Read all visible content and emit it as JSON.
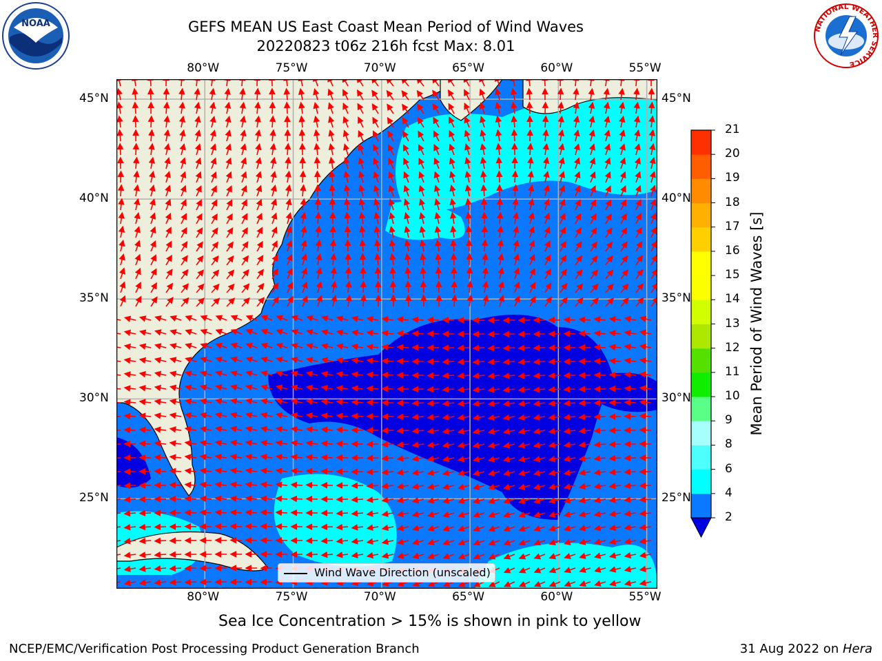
{
  "title": {
    "line1": "GEFS MEAN US East Coast Mean Period of Wind Waves",
    "line2": "20220823 t06z 216h fcst   Max: 8.01"
  },
  "map": {
    "lon_range": [
      -85,
      -54.4
    ],
    "lat_range": [
      20.5,
      46
    ],
    "lon_ticks": [
      "80°W",
      "75°W",
      "70°W",
      "65°W",
      "60°W",
      "55°W"
    ],
    "lon_tick_values": [
      -80,
      -75,
      -70,
      -65,
      -60,
      -55
    ],
    "lat_ticks": [
      "45°N",
      "40°N",
      "35°N",
      "30°N",
      "25°N"
    ],
    "lat_tick_values": [
      45,
      40,
      35,
      30,
      25
    ],
    "land_color": "#eeeedc",
    "ocean_colors": {
      "below_2": "#0000e0",
      "2_4": "#0a79ff",
      "4_6": "#00ffff",
      "6_8": "#4dfffd"
    },
    "arrow_color": "#ff0000",
    "grid": true
  },
  "legend": {
    "label": "Wind Wave Direction (unscaled)"
  },
  "colorbar": {
    "label": "Mean Period of Wind Waves [s]",
    "ticks": [
      "2",
      "4",
      "6",
      "8",
      "9",
      "10",
      "11",
      "12",
      "13",
      "14",
      "15",
      "16",
      "17",
      "18",
      "19",
      "20",
      "21"
    ],
    "colors": [
      "#0a79ff",
      "#00ffff",
      "#4dfffd",
      "#a6fffa",
      "#5aff85",
      "#11ed00",
      "#56e000",
      "#aee800",
      "#d2ff00",
      "#fbff00",
      "#ffff00",
      "#ffd000",
      "#ffb000",
      "#ff8c00",
      "#ff5e00",
      "#ff3000",
      "#ff0000"
    ],
    "under_color": "#0000e0"
  },
  "notes": {
    "sea_ice": "Sea Ice Concentration > 15% is shown in pink to yellow"
  },
  "footer": {
    "left": "NCEP/EMC/Verification Post Processing Product Generation Branch",
    "right_date": "31 Aug 2022 on ",
    "right_machine": "Hera"
  },
  "logos": {
    "left": "NOAA",
    "right_ring": "NATIONAL WEATHER SERVICE"
  }
}
